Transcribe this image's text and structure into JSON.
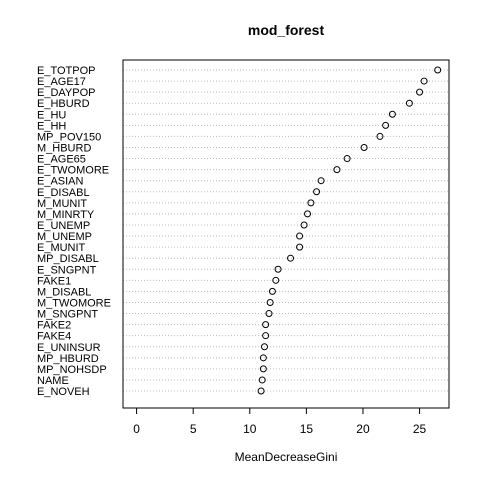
{
  "chart_data": {
    "type": "scatter",
    "title": "mod_forest",
    "xlabel": "MeanDecreaseGini",
    "ylabel": "",
    "xlim": [
      -1.2,
      27.6
    ],
    "xticks": [
      0,
      5,
      10,
      15,
      20,
      25
    ],
    "grid": "dotted horizontal",
    "legend": "none",
    "marker": "open-circle",
    "point_color": "#000000",
    "grid_color": "#bebebe",
    "categories": [
      "E_TOTPOP",
      "E_AGE17",
      "E_DAYPOP",
      "E_HBURD",
      "E_HU",
      "E_HH",
      "MP_POV150",
      "M_HBURD",
      "E_AGE65",
      "E_TWOMORE",
      "E_ASIAN",
      "E_DISABL",
      "M_MUNIT",
      "M_MINRTY",
      "E_UNEMP",
      "M_UNEMP",
      "E_MUNIT",
      "MP_DISABL",
      "E_SNGPNT",
      "FAKE1",
      "M_DISABL",
      "M_TWOMORE",
      "M_SNGPNT",
      "FAKE2",
      "FAKE4",
      "E_UNINSUR",
      "MP_HBURD",
      "MP_NOHSDP",
      "NAME",
      "E_NOVEH"
    ],
    "values": [
      26.6,
      25.4,
      25.0,
      24.1,
      22.6,
      22.0,
      21.5,
      20.1,
      18.6,
      17.7,
      16.3,
      15.9,
      15.4,
      15.1,
      14.8,
      14.4,
      14.4,
      13.6,
      12.5,
      12.3,
      12.0,
      11.8,
      11.7,
      11.4,
      11.4,
      11.3,
      11.2,
      11.2,
      11.1,
      11.0
    ]
  }
}
